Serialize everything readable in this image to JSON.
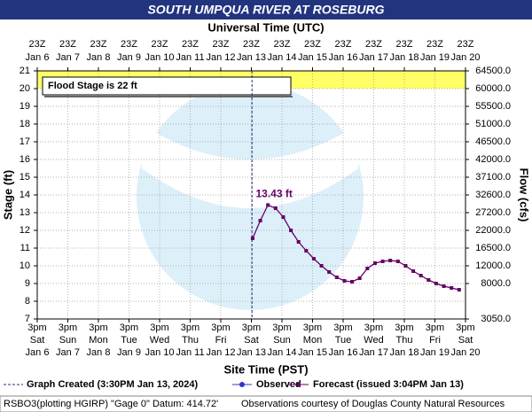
{
  "chart_data": {
    "type": "line",
    "title": "SOUTH UMPQUA RIVER AT ROSEBURG",
    "x2_axis_label": "Universal Time (UTC)",
    "x_axis_label": "Site Time (PST)",
    "y_axis_label": "Stage (ft)",
    "y2_axis_label": "Flow (cfs)",
    "xlim": [
      "Jan 6 3pm",
      "Jan 20 3pm"
    ],
    "x_ticks": [
      {
        "time": "3pm",
        "weekday": "Sat",
        "date": "Jan 6"
      },
      {
        "time": "3pm",
        "weekday": "Sun",
        "date": "Jan 7"
      },
      {
        "time": "3pm",
        "weekday": "Mon",
        "date": "Jan 8"
      },
      {
        "time": "3pm",
        "weekday": "Tue",
        "date": "Jan 9"
      },
      {
        "time": "3pm",
        "weekday": "Wed",
        "date": "Jan 10"
      },
      {
        "time": "3pm",
        "weekday": "Thu",
        "date": "Jan 11"
      },
      {
        "time": "3pm",
        "weekday": "Fri",
        "date": "Jan 12"
      },
      {
        "time": "3pm",
        "weekday": "Sat",
        "date": "Jan 13"
      },
      {
        "time": "3pm",
        "weekday": "Sun",
        "date": "Jan 14"
      },
      {
        "time": "3pm",
        "weekday": "Mon",
        "date": "Jan 15"
      },
      {
        "time": "3pm",
        "weekday": "Tue",
        "date": "Jan 16"
      },
      {
        "time": "3pm",
        "weekday": "Wed",
        "date": "Jan 17"
      },
      {
        "time": "3pm",
        "weekday": "Thu",
        "date": "Jan 18"
      },
      {
        "time": "3pm",
        "weekday": "Fri",
        "date": "Jan 19"
      },
      {
        "time": "3pm",
        "weekday": "Sat",
        "date": "Jan 20"
      }
    ],
    "x2_ticks": [
      {
        "time": "23Z",
        "date": "Jan 6"
      },
      {
        "time": "23Z",
        "date": "Jan 7"
      },
      {
        "time": "23Z",
        "date": "Jan 8"
      },
      {
        "time": "23Z",
        "date": "Jan 9"
      },
      {
        "time": "23Z",
        "date": "Jan 10"
      },
      {
        "time": "23Z",
        "date": "Jan 11"
      },
      {
        "time": "23Z",
        "date": "Jan 12"
      },
      {
        "time": "23Z",
        "date": "Jan 13"
      },
      {
        "time": "23Z",
        "date": "Jan 14"
      },
      {
        "time": "23Z",
        "date": "Jan 15"
      },
      {
        "time": "23Z",
        "date": "Jan 16"
      },
      {
        "time": "23Z",
        "date": "Jan 17"
      },
      {
        "time": "23Z",
        "date": "Jan 18"
      },
      {
        "time": "23Z",
        "date": "Jan 19"
      },
      {
        "time": "23Z",
        "date": "Jan 20"
      }
    ],
    "ylim": [
      7,
      21
    ],
    "yticks": [
      7,
      8,
      9,
      10,
      11,
      12,
      13,
      14,
      15,
      16,
      17,
      18,
      19,
      20,
      21
    ],
    "y2ticks": [
      {
        "value": 3050,
        "label": "3050.0"
      },
      null,
      {
        "value": 8000,
        "label": "8000.0"
      },
      {
        "value": 12000,
        "label": "12000.0"
      },
      {
        "value": 16500,
        "label": "16500.0"
      },
      {
        "value": 22000,
        "label": "22000.0"
      },
      {
        "value": 27200,
        "label": "27200.0"
      },
      {
        "value": 32600,
        "label": "32600.0"
      },
      {
        "value": 37100,
        "label": "37100.0"
      },
      {
        "value": 42000,
        "label": "42000.0"
      },
      {
        "value": 46500,
        "label": "46500.0"
      },
      {
        "value": 51000,
        "label": "51000.0"
      },
      {
        "value": 55500,
        "label": "55500.0"
      },
      {
        "value": 60000,
        "label": "60000.0"
      },
      {
        "value": 64500,
        "label": "64500.0"
      }
    ],
    "grid": true,
    "x": [
      "Jan 13 4pm",
      "Jan 13 10pm",
      "Jan 14 4am",
      "Jan 14 10am",
      "Jan 14 4pm",
      "Jan 14 10pm",
      "Jan 15 4am",
      "Jan 15 10am",
      "Jan 15 4pm",
      "Jan 15 10pm",
      "Jan 16 4am",
      "Jan 16 10am",
      "Jan 16 4pm",
      "Jan 16 10pm",
      "Jan 17 4am",
      "Jan 17 10am",
      "Jan 17 4pm",
      "Jan 17 10pm",
      "Jan 18 4am",
      "Jan 18 10am",
      "Jan 18 4pm",
      "Jan 18 10pm",
      "Jan 19 4am",
      "Jan 19 10am",
      "Jan 19 4pm",
      "Jan 19 10pm",
      "Jan 20 4am",
      "Jan 20 10am"
    ],
    "series": [
      {
        "name": "Observed",
        "color": "#3333cc",
        "values": [
          null,
          null,
          null,
          null,
          null,
          null,
          null,
          null,
          null,
          null,
          null,
          null,
          null,
          null,
          null,
          null,
          null,
          null,
          null,
          null,
          null,
          null,
          null,
          null,
          null,
          null,
          null,
          null
        ]
      },
      {
        "name": "Forecast (issued 3:04PM Jan 13)",
        "color": "#660066",
        "values": [
          11.55,
          12.55,
          13.43,
          13.25,
          12.75,
          12.0,
          11.35,
          10.85,
          10.4,
          10.0,
          9.65,
          9.35,
          9.15,
          9.1,
          9.3,
          9.85,
          10.15,
          10.25,
          10.3,
          10.25,
          10.0,
          9.7,
          9.45,
          9.2,
          9.0,
          8.85,
          8.75,
          8.65
        ],
        "value_labels": [
          null,
          null,
          "13.43 ft",
          null,
          null,
          null,
          null,
          null,
          null,
          null,
          null,
          null,
          null,
          null,
          null,
          null,
          null,
          null,
          null,
          null,
          null,
          null,
          null,
          null,
          null,
          null,
          null,
          null
        ]
      }
    ],
    "created_label": "Graph Created (3:30PM Jan 13, 2024)",
    "flood_band": [
      20,
      21
    ],
    "flood_band_color": "#ffff66",
    "flood_annotation": "Flood Stage is 22  ft",
    "footer_left": "RSBO3(plotting HGIRP) \"Gage 0\" Datum: 414.72'",
    "footer_right": "Observations courtesy of Douglas County Natural Resources"
  }
}
